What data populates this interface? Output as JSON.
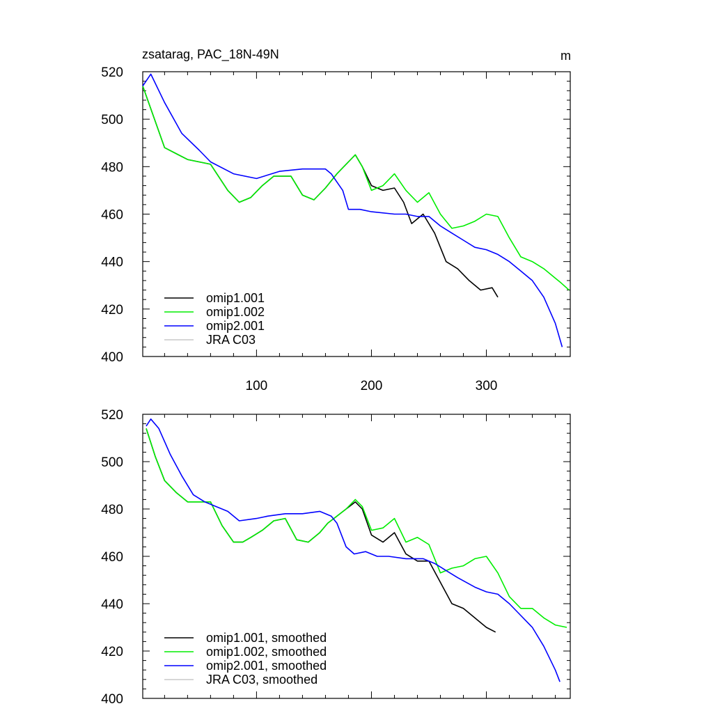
{
  "figure": {
    "title": "zsatarag, PAC_18N-49N",
    "units": "m"
  },
  "chart_data": [
    {
      "type": "line",
      "panel": "top",
      "title": "zsatarag, PAC_18N-49N",
      "units": "m",
      "xlim": [
        1,
        373
      ],
      "ylim": [
        400,
        520
      ],
      "xticks": [
        100,
        200,
        300
      ],
      "xtick_labels": [
        "100",
        "200",
        "300"
      ],
      "yticks": [
        400,
        420,
        440,
        460,
        480,
        500,
        520
      ],
      "ytick_labels": [
        "400",
        "420",
        "440",
        "460",
        "480",
        "500",
        "520"
      ],
      "legend_position": "bottom-left",
      "series": [
        {
          "name": "omip1.001",
          "color": "#000000",
          "x": [
            1,
            20,
            40,
            60,
            75,
            85,
            95,
            105,
            115,
            130,
            140,
            150,
            160,
            170,
            180,
            186,
            192,
            200,
            210,
            220,
            228,
            235,
            245,
            255,
            265,
            275,
            285,
            295,
            305,
            310
          ],
          "y": [
            514,
            488,
            483,
            481,
            470,
            465,
            467,
            472,
            476,
            476,
            468,
            466,
            471,
            477,
            482,
            485,
            480,
            472,
            470,
            471,
            465,
            456,
            460,
            452,
            440,
            437,
            432,
            428,
            429,
            425
          ]
        },
        {
          "name": "omip1.002",
          "color": "#00ee00",
          "x": [
            1,
            20,
            40,
            60,
            75,
            85,
            95,
            105,
            115,
            130,
            140,
            150,
            160,
            170,
            180,
            186,
            192,
            200,
            210,
            220,
            230,
            240,
            250,
            260,
            270,
            280,
            290,
            300,
            310,
            320,
            330,
            340,
            350,
            360,
            365,
            372
          ],
          "y": [
            514,
            488,
            483,
            481,
            470,
            465,
            467,
            472,
            476,
            476,
            468,
            466,
            471,
            477,
            482,
            485,
            480,
            470,
            472,
            477,
            470,
            465,
            469,
            460,
            454,
            455,
            457,
            460,
            459,
            450,
            442,
            440,
            437,
            433,
            431,
            428
          ]
        },
        {
          "name": "omip2.001",
          "color": "#0000ff",
          "x": [
            1,
            8,
            20,
            35,
            50,
            60,
            80,
            100,
            120,
            140,
            160,
            165,
            175,
            180,
            190,
            200,
            220,
            230,
            240,
            250,
            260,
            270,
            280,
            290,
            300,
            310,
            320,
            330,
            340,
            350,
            360,
            366
          ],
          "y": [
            514,
            519,
            507,
            494,
            487,
            482,
            477,
            475,
            478,
            479,
            479,
            477,
            470,
            462,
            462,
            461,
            460,
            460,
            459,
            459,
            455,
            452,
            449,
            446,
            445,
            443,
            440,
            436,
            432,
            425,
            414,
            404
          ]
        },
        {
          "name": "JRA C03",
          "color": "#c8c8c8",
          "x": [],
          "y": []
        }
      ]
    },
    {
      "type": "line",
      "panel": "bottom",
      "xlim": [
        1,
        373
      ],
      "ylim": [
        400,
        520
      ],
      "xticks": [
        100,
        200,
        300
      ],
      "yticks": [
        400,
        420,
        440,
        460,
        480,
        500,
        520
      ],
      "ytick_labels": [
        "400",
        "420",
        "440",
        "460",
        "480",
        "500",
        "520"
      ],
      "legend_position": "bottom-left",
      "series": [
        {
          "name": "omip1.001, smoothed",
          "color": "#000000",
          "x": [
            4,
            12,
            20,
            30,
            40,
            50,
            60,
            70,
            80,
            88,
            95,
            105,
            115,
            125,
            135,
            145,
            155,
            162,
            170,
            178,
            186,
            192,
            200,
            210,
            220,
            230,
            240,
            250,
            260,
            270,
            280,
            290,
            300,
            308
          ],
          "y": [
            514,
            502,
            492,
            487,
            483,
            483,
            483,
            473,
            466,
            466,
            468,
            471,
            475,
            476,
            467,
            466,
            470,
            474,
            477,
            480,
            483,
            480,
            469,
            466,
            470,
            461,
            458,
            458,
            449,
            440,
            438,
            434,
            430,
            428
          ]
        },
        {
          "name": "omip1.002, smoothed",
          "color": "#00ee00",
          "x": [
            4,
            12,
            20,
            30,
            40,
            50,
            60,
            70,
            80,
            88,
            95,
            105,
            115,
            125,
            135,
            145,
            155,
            162,
            170,
            178,
            186,
            192,
            200,
            210,
            220,
            230,
            240,
            250,
            260,
            270,
            280,
            290,
            300,
            310,
            320,
            330,
            340,
            350,
            360,
            370
          ],
          "y": [
            514,
            502,
            492,
            487,
            483,
            483,
            483,
            473,
            466,
            466,
            468,
            471,
            475,
            476,
            467,
            466,
            470,
            474,
            477,
            480,
            484,
            481,
            471,
            472,
            476,
            466,
            468,
            465,
            453,
            455,
            456,
            459,
            460,
            453,
            443,
            438,
            438,
            434,
            431,
            430
          ]
        },
        {
          "name": "omip2.001, smoothed",
          "color": "#0000ff",
          "x": [
            4,
            8,
            15,
            25,
            35,
            45,
            55,
            65,
            75,
            85,
            100,
            110,
            125,
            140,
            155,
            165,
            170,
            178,
            185,
            195,
            205,
            215,
            230,
            245,
            255,
            265,
            275,
            290,
            300,
            310,
            320,
            330,
            340,
            350,
            360,
            364
          ],
          "y": [
            515,
            518,
            514,
            503,
            494,
            486,
            483,
            481,
            479,
            475,
            476,
            477,
            478,
            478,
            479,
            477,
            474,
            464,
            461,
            462,
            460,
            460,
            459,
            459,
            457,
            454,
            451,
            447,
            445,
            444,
            440,
            435,
            430,
            422,
            412,
            407
          ]
        },
        {
          "name": "JRA C03, smoothed",
          "color": "#c8c8c8",
          "x": [],
          "y": []
        }
      ]
    }
  ]
}
